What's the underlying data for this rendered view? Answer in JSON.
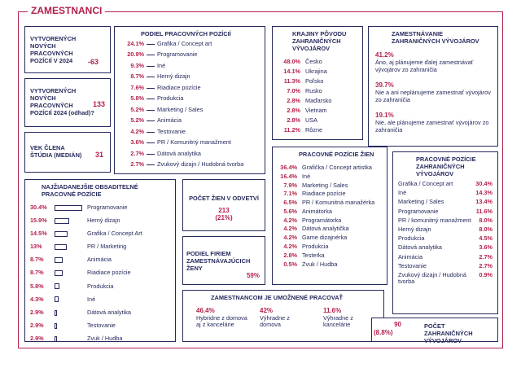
{
  "header": {
    "title": "ZAMESTNANCI"
  },
  "stats": [
    {
      "title": "VYTVORENÝCH NOVÝCH PRACOVNÝCH POZÍCIÍ V 2024",
      "value": "-63"
    },
    {
      "title": "VYTVORENÝCH NOVÝCH PRACOVNÝCH POZÍCIÍ 2024 (odhad)?",
      "value": "133"
    },
    {
      "title": "VEK ČLENA ŠTÚDIA (MEDIÁN)",
      "value": "31"
    }
  ],
  "positions": {
    "title": "PODIEL PRACOVNÝCH POZÍCIÍ",
    "items": [
      {
        "value": "24.1%",
        "label": "Grafika / Concept art"
      },
      {
        "value": "20.9%",
        "label": "Programovanie"
      },
      {
        "value": "9.3%",
        "label": "Iné"
      },
      {
        "value": "8.7%",
        "label": "Herný dizajn"
      },
      {
        "value": "7.6%",
        "label": "Riadiace pozície"
      },
      {
        "value": "5.8%",
        "label": "Produkcia"
      },
      {
        "value": "5.2%",
        "label": "Marketing / Sales"
      },
      {
        "value": "5.2%",
        "label": "Animácia"
      },
      {
        "value": "4.2%",
        "label": "Testovanie"
      },
      {
        "value": "3.6%",
        "label": "PR / Komunitný manažment"
      },
      {
        "value": "2.7%",
        "label": "Dátová analytika"
      },
      {
        "value": "2.7%",
        "label": "Zvukový dizajn / Hudobná tvorba"
      }
    ]
  },
  "countries": {
    "title": "KRAJINY PÔVODU ZAHRANIČNÝCH VÝVOJÁROV",
    "items": [
      {
        "value": "48.0%",
        "label": "Česko"
      },
      {
        "value": "14.1%",
        "label": "Ukrajina"
      },
      {
        "value": "11.3%",
        "label": "Poľsko"
      },
      {
        "value": "7.0%",
        "label": "Rusko"
      },
      {
        "value": "2.8%",
        "label": "Maďarsko"
      },
      {
        "value": "2.8%",
        "label": "Vietnam"
      },
      {
        "value": "2.8%",
        "label": "USA"
      },
      {
        "value": "11.2%",
        "label": "Rôzne"
      }
    ]
  },
  "hiring": {
    "title": "ZAMESTNÁVANIE ZAHRANIČNÝCH VÝVOJÁROV",
    "items": [
      {
        "value": "41.2%",
        "label": "Áno, aj plánujeme ďalej zamestnávať vývojárov zo zahraničia"
      },
      {
        "value": "39.7%",
        "label": "Nie a ani neplánujeme zamestnať vývojárov zo zahraničia"
      },
      {
        "value": "19.1%",
        "label": "Nie, ale plánujeme zamestnať vývojárov zo zahraničia"
      }
    ]
  },
  "wanted": {
    "title": "NAJŽIADANEJŠIE OBSADITEĽNÉ PRACOVNÉ POZÍCIE",
    "items": [
      {
        "percent": 30.4,
        "percent_label": "30.4%",
        "label": "Programovanie"
      },
      {
        "percent": 15.9,
        "percent_label": "15.9%",
        "label": "Herný dizajn"
      },
      {
        "percent": 14.5,
        "percent_label": "14.5%",
        "label": "Grafika / Concept Art"
      },
      {
        "percent": 13,
        "percent_label": "13%",
        "label": "PR / Marketing"
      },
      {
        "percent": 8.7,
        "percent_label": "8.7%",
        "label": "Animácia"
      },
      {
        "percent": 8.7,
        "percent_label": "8.7%",
        "label": "Riadiace pozície"
      },
      {
        "percent": 5.8,
        "percent_label": "5.8%",
        "label": "Produkcia"
      },
      {
        "percent": 4.3,
        "percent_label": "4.3%",
        "label": "Iné"
      },
      {
        "percent": 2.9,
        "percent_label": "2.9%",
        "label": "Dátová analytika"
      },
      {
        "percent": 2.9,
        "percent_label": "2.9%",
        "label": "Testovanie"
      },
      {
        "percent": 2.9,
        "percent_label": "2.9%",
        "label": "Zvuk / Hudba"
      }
    ]
  },
  "women_count": {
    "title": "POČET ŽIEN V ODVETVÍ",
    "value": "213",
    "share": "(21%)"
  },
  "women_firms": {
    "title": "PODIEL FIRIEM ZAMESTNÁVAJÚCICH ŽENY",
    "value": "59%"
  },
  "women_positions": {
    "title": "PRACOVNÉ POZÍCIE ŽIEN",
    "items": [
      {
        "value": "36.4%",
        "label": "Grafička / Concept artistka"
      },
      {
        "value": "16.4%",
        "label": "Iné"
      },
      {
        "value": "7.9%",
        "label": "Marketing / Sales"
      },
      {
        "value": "7.1%",
        "label": "Riadiace pozície"
      },
      {
        "value": "6.5%",
        "label": "PR / Komunitná manažérka"
      },
      {
        "value": "5.6%",
        "label": "Animátorka"
      },
      {
        "value": "4.2%",
        "label": "Programátorka"
      },
      {
        "value": "4.2%",
        "label": "Dátová analytička"
      },
      {
        "value": "4.2%",
        "label": "Game dizajnérka"
      },
      {
        "value": "4.2%",
        "label": "Produkcia"
      },
      {
        "value": "2.8%",
        "label": "Testerka"
      },
      {
        "value": "0.5%",
        "label": "Zvuk / Hudba"
      }
    ]
  },
  "foreign_positions": {
    "title": "PRACOVNÉ POZÍCIE ZAHRANIČNÝCH VÝVOJÁROV",
    "items": [
      {
        "label": "Grafika / Concept art",
        "value": "30.4%"
      },
      {
        "label": "Iné",
        "value": "14.3%"
      },
      {
        "label": "Marketing / Sales",
        "value": "13.4%"
      },
      {
        "label": "Programovanie",
        "value": "11.6%"
      },
      {
        "label": "PR / komunitný manažment",
        "value": "8.0%"
      },
      {
        "label": "Herný dizajn",
        "value": "8.0%"
      },
      {
        "label": "Produkcia",
        "value": "4.5%"
      },
      {
        "label": "Dátová analytika",
        "value": "3.6%"
      },
      {
        "label": "Animácia",
        "value": "2.7%"
      },
      {
        "label": "Testovanie",
        "value": "2.7%"
      },
      {
        "label": "Zvukový dizajn / Hudobná tvorba",
        "value": "0.9%"
      }
    ]
  },
  "remote": {
    "title": "ZAMESTNANCOM JE UMOŽNENÉ PRACOVAŤ",
    "items": [
      {
        "value": "46.4%",
        "label": "Hybridne z domova aj z kancelárie"
      },
      {
        "value": "42%",
        "label": "Výhradne z domova"
      },
      {
        "value": "11.6%",
        "label": "Výhradne z kancelárie"
      }
    ]
  },
  "foreign_count": {
    "value": "90",
    "share": "(8.8%)",
    "title": "POČET ZAHRANIČNÝCH VÝVOJÁROV"
  }
}
